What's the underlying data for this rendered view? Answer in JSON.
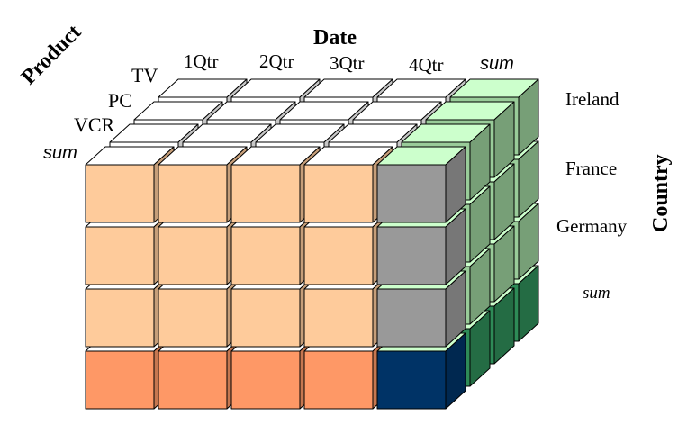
{
  "axes": {
    "date": {
      "title": "Date",
      "labels": [
        "1Qtr",
        "2Qtr",
        "3Qtr",
        "4Qtr"
      ],
      "total": "sum"
    },
    "product": {
      "title": "Product",
      "labels": [
        "TV",
        "PC",
        "VCR"
      ],
      "total": "sum"
    },
    "country": {
      "title": "Country",
      "labels": [
        "Ireland",
        "France",
        "Germany"
      ],
      "total": "sum"
    }
  },
  "colors": {
    "front_cell": "#fecb9b",
    "front_cell_total_row": "#fe9866",
    "quarter_total_column": "#999999",
    "grand_total": "#003366",
    "side_green": "#99cc99",
    "side_green_top": "#ccffcc",
    "side_green_dark": "#2e8b57",
    "top_face": "#ffffff",
    "outline": "#000000"
  }
}
